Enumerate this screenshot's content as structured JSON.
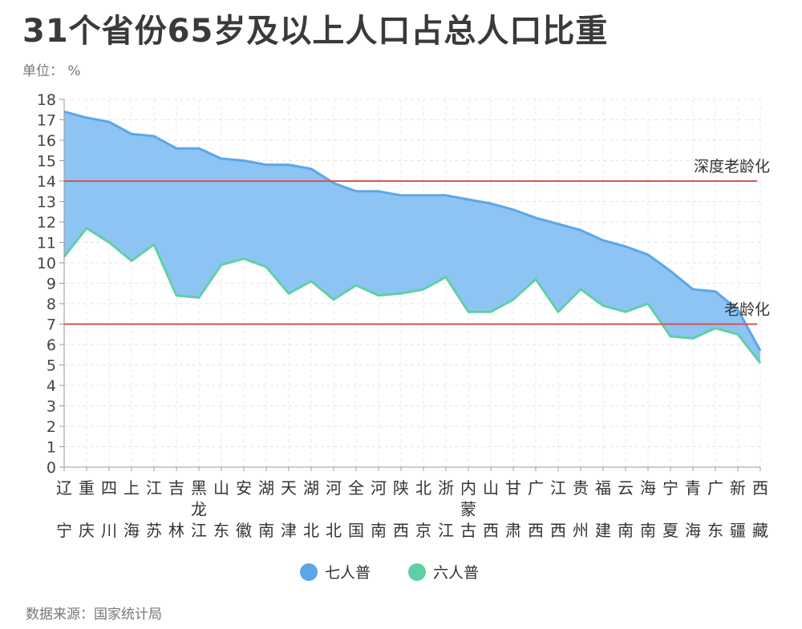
{
  "title": "31个省份65岁及以上人口占总人口比重",
  "unit_label": "单位：  %",
  "source_label": "数据来源：国家统计局",
  "chart_data": {
    "type": "area",
    "ylim": [
      0,
      18
    ],
    "yticks": [
      0,
      1,
      2,
      3,
      4,
      5,
      6,
      7,
      8,
      9,
      10,
      11,
      12,
      13,
      14,
      15,
      16,
      17,
      18
    ],
    "grid": true,
    "legend_position": "bottom",
    "categories": [
      "辽宁",
      "重庆",
      "四川",
      "上海",
      "江苏",
      "吉林",
      "黑龙江",
      "山东",
      "安徽",
      "湖南",
      "天津",
      "湖北",
      "河北",
      "全国",
      "河南",
      "陕西",
      "北京",
      "浙江",
      "内蒙古",
      "山西",
      "甘肃",
      "广西",
      "江西",
      "贵州",
      "福建",
      "云南",
      "海南",
      "宁夏",
      "青海",
      "广东",
      "新疆",
      "西藏"
    ],
    "category_label_lines": [
      [
        "辽",
        "宁"
      ],
      [
        "重",
        "庆"
      ],
      [
        "四",
        "川"
      ],
      [
        "上",
        "海"
      ],
      [
        "江",
        "苏"
      ],
      [
        "吉",
        "林"
      ],
      [
        "黑",
        "龙",
        "江"
      ],
      [
        "山",
        "东"
      ],
      [
        "安",
        "徽"
      ],
      [
        "湖",
        "南"
      ],
      [
        "天",
        "津"
      ],
      [
        "湖",
        "北"
      ],
      [
        "河",
        "北"
      ],
      [
        "全",
        "国"
      ],
      [
        "河",
        "南"
      ],
      [
        "陕",
        "西"
      ],
      [
        "北",
        "京"
      ],
      [
        "浙",
        "江"
      ],
      [
        "内",
        "蒙",
        "古"
      ],
      [
        "山",
        "西"
      ],
      [
        "甘",
        "肃"
      ],
      [
        "广",
        "西"
      ],
      [
        "江",
        "西"
      ],
      [
        "贵",
        "州"
      ],
      [
        "福",
        "建"
      ],
      [
        "云",
        "南"
      ],
      [
        "海",
        "南"
      ],
      [
        "宁",
        "夏"
      ],
      [
        "青",
        "海"
      ],
      [
        "广",
        "东"
      ],
      [
        "新",
        "疆"
      ],
      [
        "西",
        "藏"
      ]
    ],
    "series": [
      {
        "name": "七人普",
        "color": "#5aa7e8",
        "values": [
          17.4,
          17.1,
          16.9,
          16.3,
          16.2,
          15.6,
          15.6,
          15.1,
          15.0,
          14.8,
          14.8,
          14.6,
          13.9,
          13.5,
          13.5,
          13.3,
          13.3,
          13.3,
          13.1,
          12.9,
          12.6,
          12.2,
          11.9,
          11.6,
          11.1,
          10.8,
          10.4,
          9.6,
          8.7,
          8.6,
          7.7,
          5.7
        ]
      },
      {
        "name": "六人普",
        "color": "#5fd0a4",
        "values": [
          10.3,
          11.7,
          11.0,
          10.1,
          10.9,
          8.4,
          8.3,
          9.9,
          10.2,
          9.8,
          8.5,
          9.1,
          8.2,
          8.9,
          8.4,
          8.5,
          8.7,
          9.3,
          7.6,
          7.6,
          8.2,
          9.2,
          7.6,
          8.7,
          7.9,
          7.6,
          8.0,
          6.4,
          6.3,
          6.8,
          6.5,
          5.1
        ]
      }
    ],
    "reference_lines": [
      {
        "value": 14,
        "label": "深度老龄化",
        "color": "#d9534f"
      },
      {
        "value": 7,
        "label": "老龄化",
        "color": "#d9534f"
      }
    ],
    "fill_color": "#8ec4f3"
  }
}
